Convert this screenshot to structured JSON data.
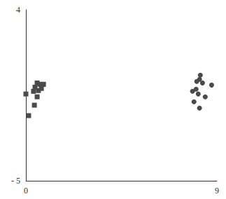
{
  "chart_data": {
    "type": "scatter",
    "series": [
      {
        "marker": "square",
        "color": "#4a4a4a",
        "x": [
          0,
          0.13,
          0.4,
          0.43,
          0.53,
          0.59,
          0.66,
          0.73,
          0.83,
          0.53,
          0.36,
          0.79
        ],
        "values": [
          -0.43,
          -1.57,
          -1.02,
          -0.07,
          0.15,
          -0.25,
          0.08,
          -0.14,
          0.08,
          -0.58,
          -0.29,
          0.07
        ]
      },
      {
        "marker": "circle",
        "color": "#4a4a4a",
        "x": [
          8.22,
          8.05,
          8.32,
          8.75,
          7.85,
          8.02,
          8.12,
          8.45,
          7.92,
          8.18,
          8.18
        ],
        "values": [
          0.56,
          0.23,
          0.15,
          0.04,
          -0.29,
          -0.18,
          -0.43,
          -0.58,
          -0.84,
          -1.17,
          0.34
        ]
      }
    ],
    "xlim": [
      0,
      9
    ],
    "xticks": [
      0,
      9
    ],
    "ylim": [
      -5,
      4
    ],
    "yticks": [
      {
        "value": -5,
        "label": "- 5"
      },
      4
    ],
    "grid": false
  }
}
